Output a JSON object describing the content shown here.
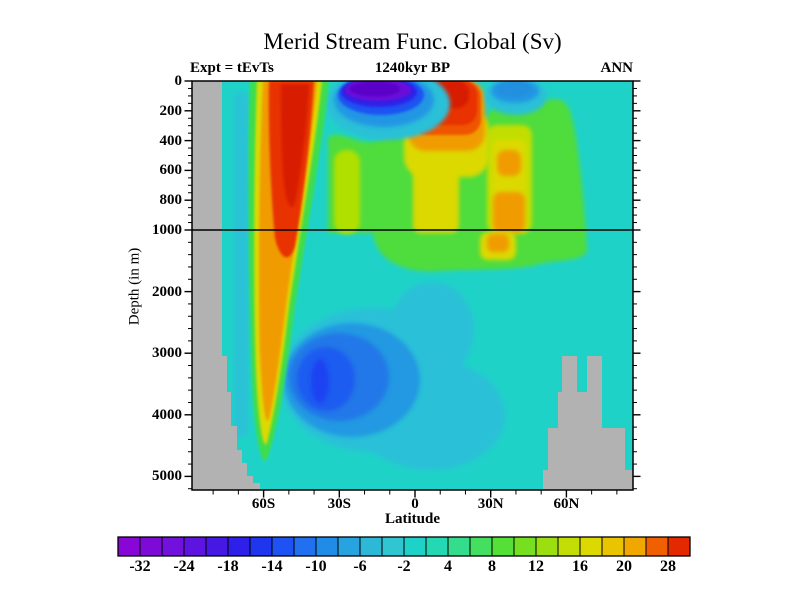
{
  "header": {
    "title": "Merid Stream Func. Global (Sv)",
    "subtitle": "1240kyr BP",
    "experiment": "Expt = tEvTs",
    "season": "ANN"
  },
  "axes": {
    "y": {
      "label": "Depth (in m)",
      "major": [
        {
          "v": 0,
          "label": "0"
        },
        {
          "v": 200,
          "label": "200"
        },
        {
          "v": 400,
          "label": "400"
        },
        {
          "v": 600,
          "label": "600"
        },
        {
          "v": 800,
          "label": "800"
        },
        {
          "v": 1000,
          "label": "1000"
        },
        {
          "v": 2000,
          "label": "2000"
        },
        {
          "v": 3000,
          "label": "3000"
        },
        {
          "v": 4000,
          "label": "4000"
        },
        {
          "v": 5000,
          "label": "5000"
        }
      ]
    },
    "x": {
      "label": "Latitude",
      "major": [
        {
          "lat": -60,
          "label": "60S"
        },
        {
          "lat": -30,
          "label": "30S"
        },
        {
          "lat": 0,
          "label": "0"
        },
        {
          "lat": 30,
          "label": "30N"
        },
        {
          "lat": 60,
          "label": "60N"
        }
      ]
    }
  },
  "colorbar": {
    "labels": [
      "-32",
      "-24",
      "-18",
      "-14",
      "-10",
      "-6",
      "-2",
      "4",
      "8",
      "12",
      "16",
      "20",
      "28"
    ],
    "colors": [
      "#8806d6",
      "#7e0ad8",
      "#7210dc",
      "#5e14e0",
      "#4618e4",
      "#2e20e8",
      "#1f35ee",
      "#1f52f2",
      "#2070f0",
      "#218ce8",
      "#27a4e0",
      "#2db8d8",
      "#2fc6d2",
      "#1fd2c8",
      "#23d8b2",
      "#33dd8c",
      "#44df60",
      "#55e038",
      "#76df20",
      "#9cdf10",
      "#c2de06",
      "#dcd900",
      "#e9c400",
      "#f0a800",
      "#f06000",
      "#e42800"
    ]
  },
  "palette": {
    "teal": "#1fd2c8",
    "green": "#4fdc3d",
    "wedgeGreen": "#3edd4e",
    "yellowGreen": "#b0e005",
    "yellowGreen2": "#c2de06",
    "yellow": "#dcd900",
    "orange": "#f09c00",
    "redOrange": "#ef5500",
    "red": "#e83000",
    "darkRed": "#d81c00",
    "strip": "#29c2d6",
    "cyanBlue": "#2cc0d8",
    "skyBlue": "#2196e4",
    "blue": "#1f52f2",
    "deepBlue": "#2d20e8",
    "purple": "#6a0ad8",
    "darkPurple": "#5a02c8",
    "blobBlue1": "#2199e2",
    "blobBlue2": "#2178e8",
    "blobBlue3": "#1f5bf0",
    "blobBlue4": "#1c42f2",
    "patchBlue": "#2490de",
    "gray": "#b2b2b2",
    "black": "#000000"
  },
  "chart_data": {
    "type": "filled_contour",
    "title": "Merid Stream Func. Global (Sv)",
    "subtitle": "1240kyr BP",
    "experiment": "Expt = tEvTs",
    "season": "ANN",
    "units": "Sv",
    "x_axis": {
      "label": "Latitude",
      "tick_labels": [
        "60S",
        "30S",
        "0",
        "30N",
        "60N"
      ],
      "range_deg": [
        -88,
        87
      ]
    },
    "y_axis": {
      "label": "Depth (in m)",
      "tick_labels": [
        0,
        200,
        400,
        600,
        800,
        1000,
        2000,
        3000,
        4000,
        5000
      ],
      "split_at_m": 1000,
      "note": "0-1000 m stretched, 1000-5000 m compressed"
    },
    "reference_line_depth_m": 1000,
    "colorbar_labels": [
      -32,
      -24,
      -18,
      -14,
      -10,
      -6,
      -2,
      4,
      8,
      12,
      16,
      20,
      28
    ],
    "colorbar_cells": 26,
    "background_value_range_sv": [
      -2,
      4
    ],
    "features": [
      {
        "name": "southern_positive_wedge",
        "lat_range": [
          -62,
          -42
        ],
        "depth_range_m": [
          0,
          4600
        ],
        "value_sv": "max > 28 (red core 0-1500 m, tapering V to ~4500 m)"
      },
      {
        "name": "equatorial_surface_negative_cell",
        "lat_range": [
          -26,
          0
        ],
        "depth_range_m": [
          0,
          250
        ],
        "value_sv": "min < -32 (purple core ~0-120 m)"
      },
      {
        "name": "tropical_north_surface_positive_cell",
        "lat_range": [
          0,
          25
        ],
        "depth_range_m": [
          0,
          350
        ],
        "value_sv": "max > 28 (red core 0-180 m)"
      },
      {
        "name": "nadw_mid_depth_positive_layer",
        "lat_range": [
          -33,
          68
        ],
        "depth_range_m": [
          120,
          1400
        ],
        "value_sv": "4 to 20; yellow-orange maxima ~16-20 near 30-45N and below tropics"
      },
      {
        "name": "north_midlat_surface_negative_patch",
        "lat_range": [
          30,
          51
        ],
        "depth_range_m": [
          0,
          150
        ],
        "value_sv": "about -6 to -10"
      },
      {
        "name": "deep_negative_cell",
        "lat_range": [
          -50,
          -10
        ],
        "depth_range_m": [
          2200,
          4700
        ],
        "value_sv": "min about -12 to -14, centered near 37S / 3500 m"
      },
      {
        "name": "topography_mask_south",
        "description": "gray staircase along left edge widening below 3000 m"
      },
      {
        "name": "topography_mask_north",
        "description": "gray stepped ridge (two towers) 55N-87N below ~3300 m"
      }
    ]
  }
}
